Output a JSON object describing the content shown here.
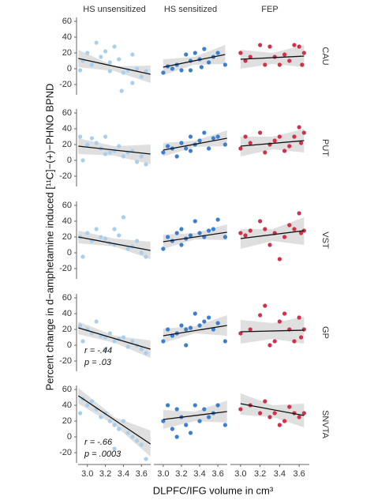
{
  "chart_data": {
    "type": "scatter",
    "xlabel": "DLPFC/IFG volume in cm³",
    "ylabel": "Percent change in d−amphetamine induced [¹¹C]−(+)−PHNO BPND",
    "xlim": [
      2.88,
      3.72
    ],
    "ylim": [
      -33,
      65
    ],
    "xticks": [
      {
        "value": 3,
        "label": "3.0"
      },
      3.2,
      3.4,
      3.6
    ],
    "yticks": [
      -20,
      0,
      20,
      40,
      60
    ],
    "band_color": "#d4d4d4",
    "line_color": "#111111",
    "columns": [
      {
        "name": "HS unsensitized",
        "color": "#a9cfee"
      },
      {
        "name": "HS sensitized",
        "color": "#3b7fd0"
      },
      {
        "name": "FEP",
        "color": "#d0304a"
      }
    ],
    "rows": [
      {
        "name": "CAU",
        "panels": [
          {
            "x": [
              2.95,
              3.0,
              3.1,
              3.05,
              3.15,
              3.2,
              3.25,
              3.3,
              3.35,
              3.4,
              3.45,
              3.5,
              3.55,
              3.6,
              3.65,
              2.92,
              3.38,
              3.5,
              3.25
            ],
            "y": [
              10,
              20,
              33,
              5,
              15,
              22,
              8,
              28,
              12,
              -5,
              -2,
              18,
              0,
              -10,
              -3,
              -2,
              -28,
              -18,
              -3
            ],
            "fit": {
              "x": [
                2.9,
                3.7
              ],
              "y": [
                13,
                -7
              ]
            },
            "band": {
              "x": [
                2.9,
                3.3,
                3.7
              ],
              "lower": [
                2,
                -3,
                -18
              ],
              "upper": [
                24,
                3,
                4
              ]
            }
          },
          {
            "x": [
              3.0,
              3.05,
              3.1,
              3.15,
              3.2,
              3.25,
              3.3,
              3.35,
              3.4,
              3.45,
              3.5,
              3.55,
              3.6,
              3.68,
              3.3,
              3.42
            ],
            "y": [
              -5,
              3,
              0,
              5,
              -2,
              18,
              10,
              20,
              12,
              25,
              8,
              15,
              20,
              5,
              -2,
              2
            ],
            "fit": {
              "x": [
                3.0,
                3.68
              ],
              "y": [
                2,
                18
              ]
            },
            "band": {
              "x": [
                3.0,
                3.34,
                3.68
              ],
              "lower": [
                -8,
                5,
                6
              ],
              "upper": [
                12,
                15,
                30
              ]
            }
          },
          {
            "x": [
              3.0,
              3.1,
              3.2,
              3.25,
              3.3,
              3.35,
              3.4,
              3.45,
              3.5,
              3.55,
              3.6,
              3.63,
              3.65,
              3.05
            ],
            "y": [
              20,
              15,
              30,
              5,
              28,
              15,
              5,
              18,
              10,
              30,
              28,
              5,
              20,
              10
            ],
            "fit": {
              "x": [
                3.0,
                3.65
              ],
              "y": [
                12,
                16
              ]
            },
            "band": {
              "x": [
                3.0,
                3.33,
                3.65
              ],
              "lower": [
                0,
                6,
                2
              ],
              "upper": [
                24,
                20,
                30
              ]
            }
          }
        ]
      },
      {
        "name": "PUT",
        "panels": [
          {
            "x": [
              2.92,
              3.0,
              3.05,
              3.1,
              3.15,
              3.2,
              3.25,
              3.3,
              3.35,
              3.4,
              3.45,
              3.5,
              3.55,
              3.6,
              3.65,
              2.95,
              3.2
            ],
            "y": [
              30,
              20,
              28,
              22,
              15,
              30,
              10,
              12,
              18,
              5,
              10,
              12,
              -2,
              5,
              -5,
              0,
              8
            ],
            "fit": {
              "x": [
                2.9,
                3.7
              ],
              "y": [
                18,
                8
              ]
            },
            "band": {
              "x": [
                2.9,
                3.3,
                3.7
              ],
              "lower": [
                8,
                6,
                -5
              ],
              "upper": [
                28,
                18,
                20
              ]
            }
          },
          {
            "x": [
              3.0,
              3.05,
              3.1,
              3.15,
              3.2,
              3.25,
              3.3,
              3.35,
              3.4,
              3.45,
              3.5,
              3.55,
              3.6,
              3.68,
              3.3
            ],
            "y": [
              10,
              18,
              15,
              5,
              22,
              15,
              30,
              20,
              25,
              35,
              15,
              28,
              30,
              20,
              12
            ],
            "fit": {
              "x": [
                3.0,
                3.7
              ],
              "y": [
                13,
                28
              ]
            },
            "band": {
              "x": [
                3.0,
                3.35,
                3.7
              ],
              "lower": [
                5,
                17,
                18
              ],
              "upper": [
                22,
                25,
                38
              ]
            }
          },
          {
            "x": [
              3.0,
              3.05,
              3.1,
              3.2,
              3.25,
              3.3,
              3.35,
              3.4,
              3.45,
              3.5,
              3.55,
              3.6,
              3.62,
              3.65
            ],
            "y": [
              15,
              30,
              22,
              35,
              10,
              20,
              25,
              30,
              12,
              18,
              30,
              42,
              22,
              35
            ],
            "fit": {
              "x": [
                3.0,
                3.65
              ],
              "y": [
                18,
                25
              ]
            },
            "band": {
              "x": [
                3.0,
                3.33,
                3.65
              ],
              "lower": [
                5,
                14,
                10
              ],
              "upper": [
                30,
                30,
                40
              ]
            }
          }
        ]
      },
      {
        "name": "VST",
        "panels": [
          {
            "x": [
              2.92,
              3.0,
              3.05,
              3.1,
              3.15,
              3.2,
              3.25,
              3.3,
              3.35,
              3.4,
              3.45,
              3.5,
              3.55,
              3.6,
              3.65,
              2.95,
              3.3
            ],
            "y": [
              20,
              25,
              15,
              30,
              20,
              18,
              12,
              10,
              22,
              45,
              5,
              8,
              15,
              0,
              -5,
              -5,
              30
            ],
            "fit": {
              "x": [
                2.9,
                3.7
              ],
              "y": [
                20,
                3
              ]
            },
            "band": {
              "x": [
                2.9,
                3.3,
                3.7
              ],
              "lower": [
                12,
                8,
                -8
              ],
              "upper": [
                28,
                18,
                14
              ]
            }
          },
          {
            "x": [
              3.0,
              3.05,
              3.1,
              3.15,
              3.2,
              3.25,
              3.3,
              3.35,
              3.4,
              3.45,
              3.5,
              3.55,
              3.6,
              3.68,
              3.2
            ],
            "y": [
              5,
              20,
              15,
              25,
              30,
              18,
              22,
              40,
              25,
              20,
              28,
              30,
              42,
              20,
              10
            ],
            "fit": {
              "x": [
                3.0,
                3.7
              ],
              "y": [
                14,
                26
              ]
            },
            "band": {
              "x": [
                3.0,
                3.35,
                3.7
              ],
              "lower": [
                5,
                17,
                16
              ],
              "upper": [
                23,
                25,
                36
              ]
            }
          },
          {
            "x": [
              3.0,
              3.05,
              3.1,
              3.2,
              3.25,
              3.3,
              3.35,
              3.4,
              3.45,
              3.5,
              3.55,
              3.6,
              3.62,
              3.65
            ],
            "y": [
              25,
              22,
              28,
              40,
              30,
              10,
              25,
              -8,
              20,
              35,
              30,
              50,
              25,
              28
            ],
            "fit": {
              "x": [
                3.0,
                3.65
              ],
              "y": [
                18,
                28
              ]
            },
            "band": {
              "x": [
                3.0,
                3.33,
                3.65
              ],
              "lower": [
                5,
                15,
                10
              ],
              "upper": [
                30,
                30,
                45
              ]
            }
          }
        ]
      },
      {
        "name": "GP",
        "panels": [
          {
            "x": [
              2.92,
              3.0,
              3.05,
              3.1,
              3.15,
              3.2,
              3.25,
              3.3,
              3.35,
              3.4,
              3.45,
              3.5,
              3.55,
              3.6,
              3.65,
              2.95,
              3.2
            ],
            "y": [
              25,
              20,
              15,
              30,
              12,
              10,
              15,
              5,
              8,
              10,
              -2,
              5,
              0,
              -5,
              -10,
              5,
              -5
            ],
            "fit": {
              "x": [
                2.9,
                3.7
              ],
              "y": [
                22,
                -5
              ]
            },
            "band": {
              "x": [
                2.9,
                3.3,
                3.7
              ],
              "lower": [
                14,
                3,
                -16
              ],
              "upper": [
                30,
                12,
                6
              ]
            },
            "annotations": [
              "r = -.44",
              "p = .03"
            ]
          },
          {
            "x": [
              3.0,
              3.05,
              3.1,
              3.15,
              3.2,
              3.25,
              3.3,
              3.35,
              3.4,
              3.45,
              3.5,
              3.55,
              3.6,
              3.68,
              3.25
            ],
            "y": [
              5,
              20,
              12,
              15,
              25,
              20,
              22,
              40,
              25,
              30,
              35,
              20,
              28,
              5,
              0
            ],
            "fit": {
              "x": [
                3.0,
                3.7
              ],
              "y": [
                12,
                25
              ]
            },
            "band": {
              "x": [
                3.0,
                3.35,
                3.7
              ],
              "lower": [
                3,
                15,
                12
              ],
              "upper": [
                21,
                24,
                38
              ]
            }
          },
          {
            "x": [
              3.0,
              3.1,
              3.2,
              3.25,
              3.3,
              3.35,
              3.4,
              3.45,
              3.5,
              3.55,
              3.6,
              3.62,
              3.65
            ],
            "y": [
              15,
              20,
              38,
              50,
              0,
              5,
              30,
              40,
              20,
              5,
              35,
              10,
              20
            ],
            "fit": {
              "x": [
                3.0,
                3.65
              ],
              "y": [
                17,
                19
              ]
            },
            "band": {
              "x": [
                3.0,
                3.33,
                3.65
              ],
              "lower": [
                2,
                8,
                2
              ],
              "upper": [
                32,
                28,
                36
              ]
            }
          }
        ]
      },
      {
        "name": "SNVTA",
        "panels": [
          {
            "x": [
              2.92,
              3.0,
              3.05,
              3.1,
              3.15,
              3.2,
              3.25,
              3.3,
              3.35,
              3.4,
              3.45,
              3.5,
              3.55,
              3.6,
              3.65,
              2.95,
              3.3
            ],
            "y": [
              30,
              40,
              45,
              35,
              25,
              30,
              20,
              15,
              10,
              20,
              5,
              0,
              -5,
              -10,
              -28,
              48,
              -15
            ],
            "fit": {
              "x": [
                2.9,
                3.7
              ],
              "y": [
                52,
                -9
              ]
            },
            "band": {
              "x": [
                2.9,
                3.3,
                3.7
              ],
              "lower": [
                42,
                15,
                -25
              ],
              "upper": [
                62,
                25,
                8
              ]
            },
            "annotations": [
              "r = -.66",
              "p =  .0003"
            ]
          },
          {
            "x": [
              3.0,
              3.05,
              3.1,
              3.15,
              3.2,
              3.25,
              3.3,
              3.35,
              3.4,
              3.45,
              3.5,
              3.55,
              3.6,
              3.68,
              3.15
            ],
            "y": [
              20,
              40,
              10,
              35,
              25,
              15,
              5,
              40,
              20,
              35,
              25,
              30,
              40,
              15,
              0
            ],
            "fit": {
              "x": [
                3.0,
                3.7
              ],
              "y": [
                22,
                32
              ]
            },
            "band": {
              "x": [
                3.0,
                3.35,
                3.7
              ],
              "lower": [
                10,
                20,
                18
              ],
              "upper": [
                34,
                32,
                46
              ]
            }
          },
          {
            "x": [
              3.0,
              3.1,
              3.2,
              3.25,
              3.3,
              3.35,
              3.4,
              3.45,
              3.5,
              3.55,
              3.6,
              3.65
            ],
            "y": [
              35,
              40,
              30,
              45,
              25,
              30,
              15,
              20,
              38,
              30,
              25,
              30
            ],
            "fit": {
              "x": [
                3.0,
                3.65
              ],
              "y": [
                42,
                27
              ]
            },
            "band": {
              "x": [
                3.0,
                3.33,
                3.65
              ],
              "lower": [
                28,
                25,
                12
              ],
              "upper": [
                55,
                40,
                42
              ]
            }
          }
        ]
      }
    ]
  }
}
